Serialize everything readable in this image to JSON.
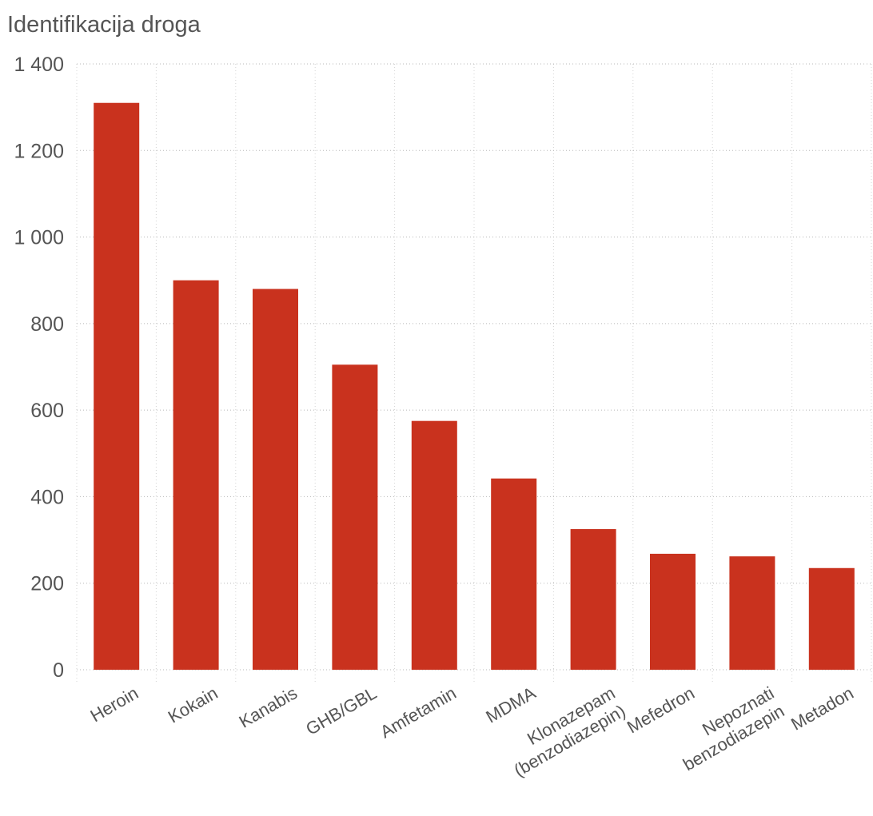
{
  "chart_data": {
    "type": "bar",
    "title": "Identifikacija droga",
    "xlabel": "",
    "ylabel": "",
    "ylim": [
      0,
      1400
    ],
    "yticks": [
      0,
      200,
      400,
      600,
      800,
      1000,
      1200,
      1400
    ],
    "ytick_labels": [
      "0",
      "200",
      "400",
      "600",
      "800",
      "1 000",
      "1 200",
      "1 400"
    ],
    "categories": [
      "Heroin",
      "Kokain",
      "Kanabis",
      "GHB/GBL",
      "Amfetamin",
      "MDMA",
      "Klonazepam (benzodiazepin)",
      "Mefedron",
      "Nepoznati benzodiazepin",
      "Metadon"
    ],
    "category_lines": [
      [
        "Heroin"
      ],
      [
        "Kokain"
      ],
      [
        "Kanabis"
      ],
      [
        "GHB/GBL"
      ],
      [
        "Amfetamin"
      ],
      [
        "MDMA"
      ],
      [
        "Klonazepam",
        "(benzodiazepin)"
      ],
      [
        "Mefedron"
      ],
      [
        "Nepoznati",
        "benzodiazepin"
      ],
      [
        "Metadon"
      ]
    ],
    "values": [
      1310,
      900,
      880,
      705,
      575,
      442,
      325,
      268,
      262,
      235
    ],
    "bar_color": "#c9321e",
    "grid": true
  }
}
